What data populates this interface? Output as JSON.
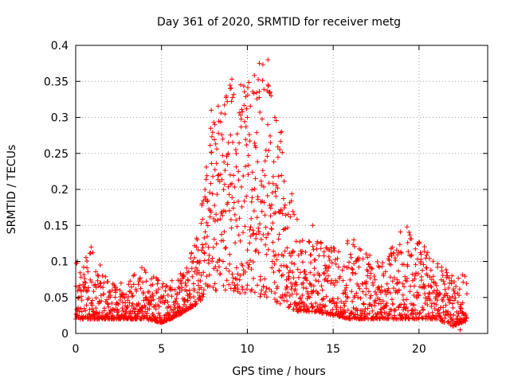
{
  "chart_data": {
    "type": "scatter",
    "title": "Day 361 of 2020, SRMTID for receiver metg",
    "xlabel": "GPS time / hours",
    "ylabel": "SRMTID / TECUs",
    "xlim": [
      0,
      24
    ],
    "ylim": [
      0,
      0.4
    ],
    "grid": true,
    "marker": "+",
    "marker_color": "#ff0000",
    "x_ticks": [
      0,
      5,
      10,
      15,
      20
    ],
    "x_tick_labels": [
      "0",
      "5",
      "10",
      "15",
      "20"
    ],
    "y_ticks": [
      0,
      0.05,
      0.1,
      0.15,
      0.2,
      0.25,
      0.3,
      0.35,
      0.4
    ],
    "y_tick_labels": [
      "0",
      "0.05",
      "0.1",
      "0.15",
      "0.2",
      "0.25",
      "0.3",
      "0.35",
      "0.4"
    ],
    "envelope": {
      "description": "approximate per-hour spread of the plotted points (data units)",
      "hours": [
        0,
        1,
        2,
        3,
        4,
        5,
        6,
        7,
        8,
        9,
        10,
        11,
        12,
        13,
        14,
        15,
        16,
        17,
        18,
        19,
        20,
        21,
        22,
        23
      ],
      "low": [
        0.02,
        0.02,
        0.02,
        0.02,
        0.02,
        0.015,
        0.025,
        0.04,
        0.06,
        0.06,
        0.05,
        0.05,
        0.04,
        0.03,
        0.03,
        0.025,
        0.02,
        0.02,
        0.02,
        0.02,
        0.02,
        0.02,
        0.01,
        0.02
      ],
      "high": [
        0.1,
        0.12,
        0.07,
        0.07,
        0.1,
        0.07,
        0.08,
        0.13,
        0.31,
        0.35,
        0.37,
        0.38,
        0.27,
        0.15,
        0.13,
        0.12,
        0.13,
        0.11,
        0.1,
        0.15,
        0.13,
        0.1,
        0.09,
        0.08
      ]
    },
    "notable_points": [
      {
        "x": 0.1,
        "y": 0.1
      },
      {
        "x": 0.9,
        "y": 0.12
      },
      {
        "x": 7.9,
        "y": 0.31
      },
      {
        "x": 8.1,
        "y": 0.29
      },
      {
        "x": 9.1,
        "y": 0.353
      },
      {
        "x": 9.0,
        "y": 0.34
      },
      {
        "x": 10.0,
        "y": 0.3
      },
      {
        "x": 10.7,
        "y": 0.375
      },
      {
        "x": 11.2,
        "y": 0.38
      },
      {
        "x": 11.2,
        "y": 0.345
      },
      {
        "x": 11.6,
        "y": 0.3
      },
      {
        "x": 12.0,
        "y": 0.28
      },
      {
        "x": 13.8,
        "y": 0.15
      },
      {
        "x": 16.2,
        "y": 0.13
      },
      {
        "x": 19.3,
        "y": 0.148
      },
      {
        "x": 20.0,
        "y": 0.127
      },
      {
        "x": 22.4,
        "y": 0.005
      }
    ]
  }
}
